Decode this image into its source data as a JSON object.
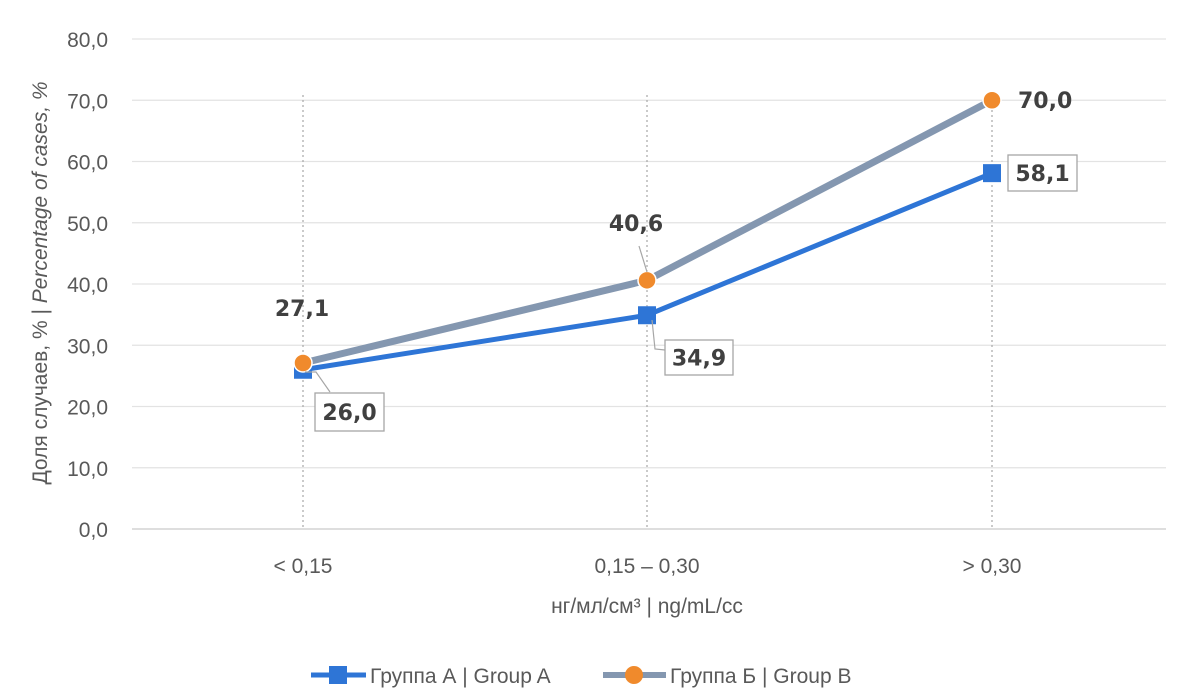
{
  "chart_data": {
    "type": "line",
    "categories": [
      "< 0,15",
      "0,15 – 0,30",
      "> 0,30"
    ],
    "xlabel": "нг/мл/см³ | ng/mL/cc",
    "ylabel_ru": "Доля случаев, % | ",
    "ylabel_en": "Percentage of cases, %",
    "ylim": [
      0,
      80
    ],
    "yticks": [
      0,
      10,
      20,
      30,
      40,
      50,
      60,
      70,
      80
    ],
    "ytick_labels": [
      "0,0",
      "10,0",
      "20,0",
      "30,0",
      "40,0",
      "50,0",
      "60,0",
      "70,0",
      "80,0"
    ],
    "grid": true,
    "legend_position": "bottom",
    "series": [
      {
        "name": "Группа А | Group A",
        "values": [
          26.0,
          34.9,
          58.1
        ],
        "labels": [
          "26,0",
          "34,9",
          "58,1"
        ],
        "marker": "square",
        "color": "#2E75D6"
      },
      {
        "name": "Группа Б | Group B",
        "values": [
          27.1,
          40.6,
          70.0
        ],
        "labels": [
          "27,1",
          "40,6",
          "70,0"
        ],
        "marker": "circle",
        "color": "#8497B0",
        "marker_color": "#F08A2C"
      }
    ]
  }
}
